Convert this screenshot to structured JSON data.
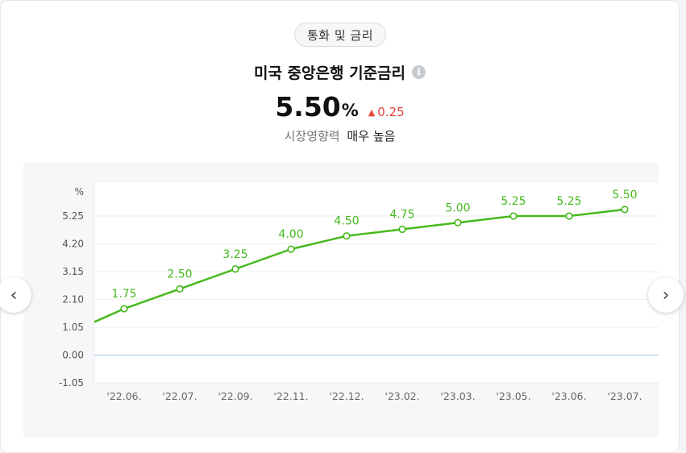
{
  "category_chip": "통화 및 금리",
  "title": "미국 중앙은행 기준금리",
  "info_icon": "info-icon",
  "value": "5.50",
  "unit": "%",
  "change": "0.25",
  "change_direction": "up",
  "change_color": "#e5453e",
  "impact_label": "시장영향력",
  "impact_value": "매우 높음",
  "nav": {
    "prev_icon": "chevron-left-icon",
    "next_icon": "chevron-right-icon"
  },
  "chart_data": {
    "type": "line",
    "categories": [
      "'22.06.",
      "'22.07.",
      "'22.09.",
      "'22.11.",
      "'22.12.",
      "'23.02.",
      "'23.03.",
      "'23.05.",
      "'23.06.",
      "'23.07."
    ],
    "values": [
      1.75,
      2.5,
      3.25,
      4.0,
      4.5,
      4.75,
      5.0,
      5.25,
      5.25,
      5.5
    ],
    "data_labels": [
      "1.75",
      "2.50",
      "3.25",
      "4.00",
      "4.50",
      "4.75",
      "5.00",
      "5.25",
      "5.25",
      "5.50"
    ],
    "lead_in_value": 1.25,
    "ylabel": "%",
    "y_ticks": [
      "5.25",
      "4.20",
      "3.15",
      "2.10",
      "1.05",
      "0.00",
      "-1.05"
    ],
    "y_tick_values": [
      5.25,
      4.2,
      3.15,
      2.1,
      1.05,
      0.0,
      -1.05
    ],
    "ylim": [
      -1.05,
      6.5
    ],
    "line_color": "#46b91c",
    "zero_line_color": "#a9c9e3",
    "grid": true
  }
}
